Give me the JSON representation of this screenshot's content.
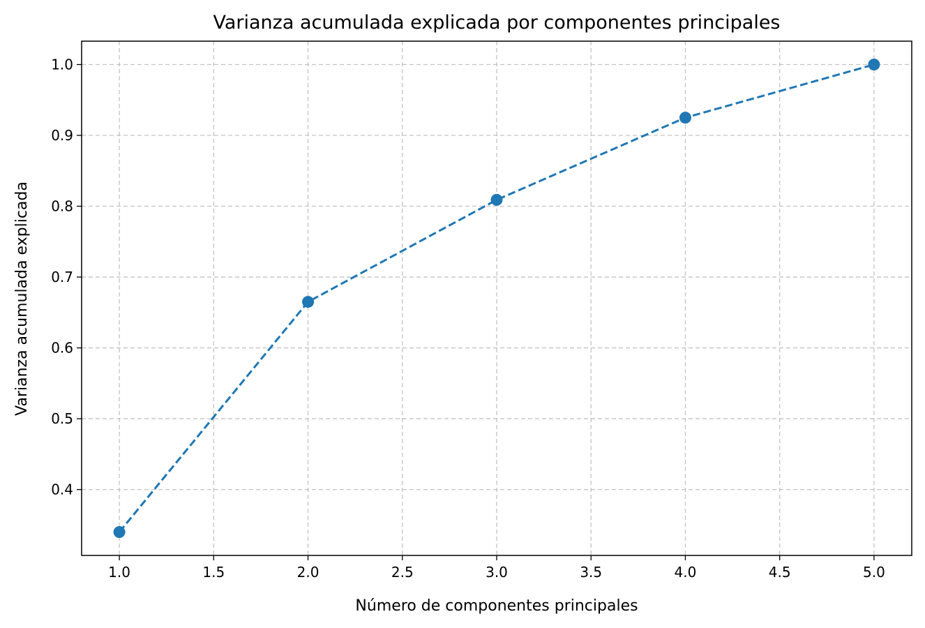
{
  "chart_data": {
    "type": "line",
    "title": "Varianza acumulada explicada por componentes principales",
    "xlabel": "Número de componentes principales",
    "ylabel": "Varianza acumulada explicada",
    "x": [
      1,
      2,
      3,
      4,
      5
    ],
    "series": [
      {
        "values": [
          0.34,
          0.665,
          0.809,
          0.925,
          1.0
        ]
      }
    ],
    "xlim": [
      0.8,
      5.2
    ],
    "ylim": [
      0.307,
      1.033
    ],
    "xticks": [
      1.0,
      1.5,
      2.0,
      2.5,
      3.0,
      3.5,
      4.0,
      4.5,
      5.0
    ],
    "yticks": [
      0.4,
      0.5,
      0.6,
      0.7,
      0.8,
      0.9,
      1.0
    ],
    "xtick_labels": [
      "1.0",
      "1.5",
      "2.0",
      "2.5",
      "3.0",
      "3.5",
      "4.0",
      "4.5",
      "5.0"
    ],
    "ytick_labels": [
      "0.4",
      "0.5",
      "0.6",
      "0.7",
      "0.8",
      "0.9",
      "1.0"
    ],
    "grid": true,
    "line_style": "dashed",
    "marker": "circle",
    "color": "#1f77b4"
  }
}
